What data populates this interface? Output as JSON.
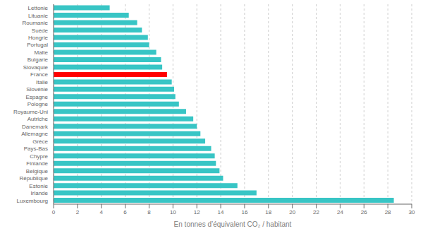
{
  "chart_data": {
    "type": "bar",
    "orientation": "horizontal",
    "categories": [
      "Lettonie",
      "Lituanie",
      "Roumanie",
      "Suède",
      "Hongrie",
      "Portugal",
      "Malte",
      "Bulgarie",
      "Slovaquie",
      "France",
      "Italie",
      "Slovénie",
      "Espagne",
      "Pologne",
      "Royaume-Uni",
      "Autriche",
      "Danemark",
      "Allemagne",
      "Grèce",
      "Pays-Bas",
      "Chypre",
      "Finlande",
      "Belgique",
      "République",
      "Estonie",
      "Irlande",
      "Luxembourg"
    ],
    "values": [
      4.7,
      6.3,
      7.0,
      7.4,
      7.9,
      8.0,
      8.6,
      9.0,
      9.1,
      9.5,
      9.9,
      10.1,
      10.2,
      10.5,
      11.1,
      11.7,
      12.0,
      12.3,
      12.7,
      13.2,
      13.5,
      13.6,
      13.9,
      14.2,
      15.4,
      17.0,
      28.5
    ],
    "colors": [
      "#38C5C5",
      "#38C5C5",
      "#38C5C5",
      "#38C5C5",
      "#38C5C5",
      "#38C5C5",
      "#38C5C5",
      "#38C5C5",
      "#38C5C5",
      "#FF0000",
      "#38C5C5",
      "#38C5C5",
      "#38C5C5",
      "#38C5C5",
      "#38C5C5",
      "#38C5C5",
      "#38C5C5",
      "#38C5C5",
      "#38C5C5",
      "#38C5C5",
      "#38C5C5",
      "#38C5C5",
      "#38C5C5",
      "#38C5C5",
      "#38C5C5",
      "#38C5C5",
      "#38C5C5"
    ],
    "xlabel": "En tonnes d’équivalent CO₂ / habitant",
    "xlim": [
      0,
      30
    ],
    "xticks": [
      0,
      2,
      4,
      6,
      8,
      10,
      12,
      14,
      16,
      18,
      20,
      22,
      24,
      26,
      28,
      30
    ],
    "grid": true
  }
}
